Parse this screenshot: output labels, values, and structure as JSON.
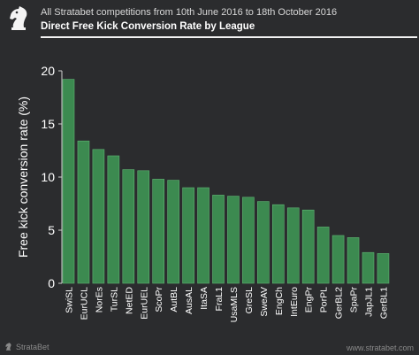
{
  "header": {
    "subtitle": "All Stratabet competitions from 10th June 2016 to 18th October 2016",
    "title": "Direct Free Kick Conversion Rate by League"
  },
  "footer": {
    "brand": "StrataBet",
    "url": "www.stratabet.com"
  },
  "colors": {
    "background": "#2b2c2e",
    "bar": "#3c8a50",
    "bar_edge": "#5fb574",
    "text": "#ffffff"
  },
  "icons": {
    "logo": "chess-knight-icon",
    "footer_logo": "chess-knight-icon"
  },
  "chart_data": {
    "type": "bar",
    "title": "Direct Free Kick Conversion Rate by League",
    "xlabel": "",
    "ylabel": "Free kick conversion rate (%)",
    "ylim": [
      0,
      20
    ],
    "yticks": [
      0,
      5,
      10,
      15,
      20
    ],
    "grid": false,
    "categories": [
      "SwiSL",
      "EurUCL",
      "NorEs",
      "TurSL",
      "NetED",
      "EurUEL",
      "ScoPr",
      "AutBL",
      "AusAL",
      "ItaSA",
      "FraL1",
      "UsaMLS",
      "GreSL",
      "SweAV",
      "EngCh",
      "IntEuro",
      "EngPr",
      "PorPL",
      "GerBL2",
      "SpaPr",
      "JapJL1",
      "GerBL1"
    ],
    "values": [
      19.2,
      13.4,
      12.6,
      12.0,
      10.7,
      10.6,
      9.8,
      9.7,
      9.0,
      9.0,
      8.3,
      8.2,
      8.1,
      7.7,
      7.4,
      7.1,
      6.9,
      5.3,
      4.5,
      4.3,
      2.9,
      2.8
    ]
  }
}
